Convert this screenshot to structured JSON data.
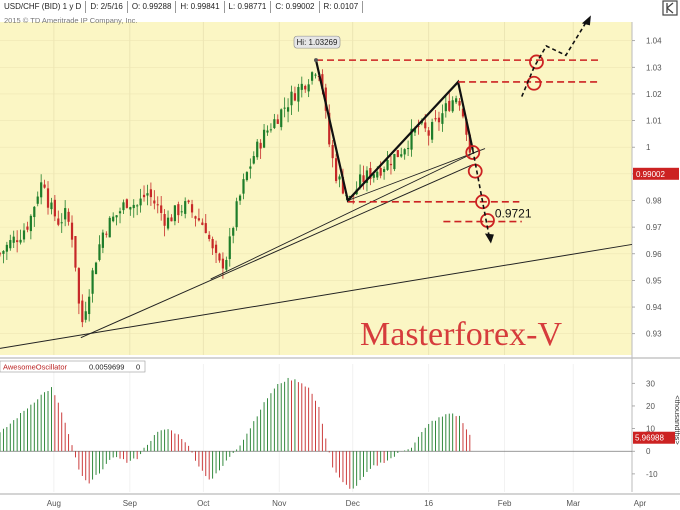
{
  "header": {
    "symbol": "USD/CHF (BID) 1 y D",
    "date": "D: 2/5/16",
    "open": "O: 0.99288",
    "high": "H: 0.99841",
    "low": "L: 0.98771",
    "close": "C: 0.99002",
    "range": "R: 0.0107",
    "copyright": "2015 © TD Ameritrade IP Company, Inc."
  },
  "icons": {
    "expand": "expand-icon"
  },
  "colors": {
    "price_bg": "#fbf6c4",
    "up": "#1e7d2a",
    "down": "#c62828",
    "axis_text": "#555555",
    "price_tag": "#cc2222"
  },
  "annotations": {
    "hi_label": "Hi: 1.03269",
    "level_label": "0.9721",
    "watermark": "Masterforex-V",
    "last_price": "0.99002"
  },
  "oscillator": {
    "label": "AwesomeOscillator",
    "value": "0.0059699",
    "zero": "0",
    "last_value": "5.96988",
    "axis_label": "<thousandths>"
  },
  "chart_data": [
    {
      "type": "candlestick",
      "title": "USD/CHF (BID) 1 y D",
      "x_tick_labels": [
        "Aug",
        "Sep",
        "Oct",
        "Nov",
        "Dec",
        "16",
        "Feb",
        "Mar",
        "Apr"
      ],
      "y_tick_labels": [
        "0.93",
        "0.94",
        "0.95",
        "0.96",
        "0.97",
        "0.98",
        "0.99",
        "1",
        "1.01",
        "1.02",
        "1.03",
        "1.04"
      ],
      "ylim": [
        0.922,
        1.047
      ],
      "x_range_days": [
        0,
        258
      ],
      "close_path": [
        [
          0,
          0.96
        ],
        [
          5,
          0.965
        ],
        [
          8,
          0.967
        ],
        [
          12,
          0.972
        ],
        [
          16,
          0.985
        ],
        [
          18,
          0.988
        ],
        [
          20,
          0.978
        ],
        [
          24,
          0.972
        ],
        [
          27,
          0.975
        ],
        [
          30,
          0.965
        ],
        [
          33,
          0.932
        ],
        [
          36,
          0.945
        ],
        [
          39,
          0.958
        ],
        [
          42,
          0.968
        ],
        [
          45,
          0.972
        ],
        [
          48,
          0.975
        ],
        [
          52,
          0.98
        ],
        [
          56,
          0.978
        ],
        [
          60,
          0.983
        ],
        [
          64,
          0.978
        ],
        [
          68,
          0.972
        ],
        [
          72,
          0.976
        ],
        [
          76,
          0.978
        ],
        [
          80,
          0.974
        ],
        [
          84,
          0.97
        ],
        [
          87,
          0.96
        ],
        [
          90,
          0.955
        ],
        [
          93,
          0.96
        ],
        [
          96,
          0.975
        ],
        [
          100,
          0.988
        ],
        [
          104,
          0.998
        ],
        [
          108,
          1.005
        ],
        [
          112,
          1.01
        ],
        [
          116,
          1.015
        ],
        [
          120,
          1.02
        ],
        [
          125,
          1.025
        ],
        [
          129,
          1.03
        ],
        [
          131,
          1.028
        ],
        [
          134,
          1.003
        ],
        [
          137,
          0.99
        ],
        [
          140,
          0.985
        ],
        [
          143,
          0.98
        ],
        [
          147,
          0.987
        ],
        [
          151,
          0.99
        ],
        [
          155,
          0.992
        ],
        [
          159,
          0.995
        ],
        [
          163,
          0.998
        ],
        [
          167,
          1.003
        ],
        [
          171,
          1.008
        ],
        [
          175,
          1.005
        ],
        [
          179,
          1.01
        ],
        [
          183,
          1.016
        ],
        [
          187,
          1.02
        ],
        [
          191,
          1.005
        ],
        [
          193,
          0.99
        ]
      ],
      "levels": [
        {
          "label": "Hi",
          "value": 1.03269
        },
        {
          "value": 1.0245
        },
        {
          "value": 0.9795
        },
        {
          "label": "0.9721",
          "value": 0.9721
        }
      ],
      "last_price": 0.99002
    },
    {
      "type": "bar",
      "title": "AwesomeOscillator",
      "y_tick_labels": [
        "-10",
        "0",
        "10",
        "20",
        "30"
      ],
      "ylim": [
        -18,
        35
      ],
      "ylabel": "<thousandths>",
      "profile": [
        [
          0,
          8
        ],
        [
          6,
          14
        ],
        [
          12,
          20
        ],
        [
          17,
          25
        ],
        [
          21,
          28
        ],
        [
          25,
          18
        ],
        [
          29,
          4
        ],
        [
          32,
          -8
        ],
        [
          36,
          -15
        ],
        [
          40,
          -10
        ],
        [
          44,
          -5
        ],
        [
          48,
          -2
        ],
        [
          52,
          -5
        ],
        [
          56,
          -3
        ],
        [
          60,
          3
        ],
        [
          64,
          8
        ],
        [
          68,
          10
        ],
        [
          72,
          8
        ],
        [
          76,
          4
        ],
        [
          79,
          -2
        ],
        [
          82,
          -8
        ],
        [
          86,
          -13
        ],
        [
          90,
          -8
        ],
        [
          94,
          -2
        ],
        [
          98,
          3
        ],
        [
          102,
          10
        ],
        [
          106,
          18
        ],
        [
          110,
          25
        ],
        [
          114,
          30
        ],
        [
          118,
          32
        ],
        [
          122,
          31
        ],
        [
          126,
          28
        ],
        [
          130,
          20
        ],
        [
          133,
          6
        ],
        [
          136,
          -8
        ],
        [
          140,
          -14
        ],
        [
          144,
          -17
        ],
        [
          148,
          -12
        ],
        [
          152,
          -7
        ],
        [
          156,
          -5
        ],
        [
          160,
          -3
        ],
        [
          164,
          0
        ],
        [
          168,
          2
        ],
        [
          172,
          8
        ],
        [
          176,
          13
        ],
        [
          180,
          15
        ],
        [
          184,
          17
        ],
        [
          188,
          15
        ],
        [
          191,
          8
        ],
        [
          193,
          6
        ]
      ],
      "last_value": 5.96988
    }
  ]
}
